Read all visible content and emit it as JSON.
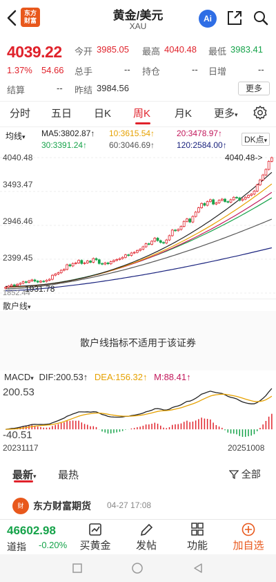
{
  "header": {
    "title": "黄金/美元",
    "subtitle": "XAU",
    "logo_text_1": "东方",
    "logo_text_2": "财富",
    "ai_label": "Ai"
  },
  "quote": {
    "price": "4039.22",
    "change_pct": "1.37%",
    "change_abs": "54.66",
    "open_label": "今开",
    "open": "3985.05",
    "high_label": "最高",
    "high": "4040.48",
    "low_label": "最低",
    "low": "3983.41",
    "volume_label": "总手",
    "volume": "--",
    "position_label": "持仓",
    "position": "--",
    "daily_inc_label": "日增",
    "daily_inc": "--",
    "settle_label": "结算",
    "settle": "--",
    "prev_settle_label": "昨结",
    "prev_settle": "3984.56",
    "more_label": "更多"
  },
  "tabs": [
    "分时",
    "五日",
    "日K",
    "周K",
    "月K",
    "更多"
  ],
  "active_tab": "周K",
  "ma": {
    "selector": "均线",
    "ma5": "MA5:3802.87↑",
    "ma10": "10:3615.54↑",
    "ma20": "20:3478.97↑",
    "ma30": "30:3391.24↑",
    "ma60": "60:3046.69↑",
    "ma120": "120:2584.00↑",
    "dk_label": "DK点"
  },
  "colors": {
    "up": "#e0222b",
    "down": "#16a34a",
    "ma5": "#222222",
    "ma10": "#e6a100",
    "ma20": "#c2185b",
    "ma30": "#16a34a",
    "ma60": "#555555",
    "ma120": "#1a237e",
    "accent": "#e8581c"
  },
  "chart_data": [
    {
      "type": "candlestick",
      "y_ticks": [
        "4040.48",
        "3493.47",
        "2946.46",
        "2399.45",
        "1852.44"
      ],
      "ylim": [
        1852.44,
        4040.48
      ],
      "annotations": {
        "high_marker": "4040.48->",
        "low_marker": "1931.78"
      },
      "close": [
        1945,
        1965,
        1985,
        1975,
        1995,
        2010,
        2035,
        2025,
        2050,
        2065,
        2045,
        2030,
        2045,
        2040,
        2060,
        2075,
        2140,
        2160,
        2180,
        2220,
        2235,
        2310,
        2290,
        2330,
        2340,
        2380,
        2330,
        2340,
        2370,
        2350,
        2410,
        2390,
        2330,
        2320,
        2340,
        2325,
        2360,
        2380,
        2395,
        2410,
        2430,
        2470,
        2460,
        2500,
        2510,
        2540,
        2560,
        2600,
        2650,
        2640,
        2690,
        2740,
        2700,
        2670,
        2660,
        2710,
        2780,
        2870,
        2860,
        2880,
        2930,
        3010,
        3050,
        3000,
        3090,
        3160,
        3230,
        3300,
        3270,
        3330,
        3360,
        3290,
        3310,
        3350,
        3370,
        3330,
        3320,
        3360,
        3400,
        3390,
        3350,
        3370,
        3400,
        3430,
        3450,
        3500,
        3600,
        3680,
        3760,
        3850,
        3980,
        4039.22
      ],
      "ma_series": {
        "ma5": {
          "start": 1960,
          "end": 3802.87
        },
        "ma10": {
          "start": 1955,
          "end": 3615.54
        },
        "ma20": {
          "start": 1950,
          "end": 3478.97
        },
        "ma30": {
          "start": 1945,
          "end": 3391.24
        },
        "ma60": {
          "start": 1920,
          "end": 3046.69
        },
        "ma120": {
          "start": 1890,
          "end": 2584.0
        }
      }
    },
    {
      "type": "macd",
      "dif": 200.53,
      "dea": 156.32,
      "macd": 88.41,
      "y_ticks": [
        "200.53",
        "-40.51"
      ],
      "x_ticks": [
        "20231117",
        "20251008"
      ]
    }
  ],
  "sanhu": {
    "label": "散户线",
    "message": "散户线指标不适用于该证券"
  },
  "macd_head": {
    "name": "MACD",
    "dif": "DIF:200.53↑",
    "dea": "DEA:156.32↑",
    "m": "M:88.41↑"
  },
  "news": {
    "tabs": [
      "最新",
      "最热"
    ],
    "filter": "全部",
    "post_author": "东方财富期货",
    "post_time": "04-27 17:08",
    "avatar_text": "财"
  },
  "bottom": {
    "index_value": "46602.98",
    "index_name": "道指",
    "index_change": "-0.20%",
    "buy_label": "买黄金",
    "post_label": "发帖",
    "func_label": "功能",
    "add_label": "加自选"
  }
}
